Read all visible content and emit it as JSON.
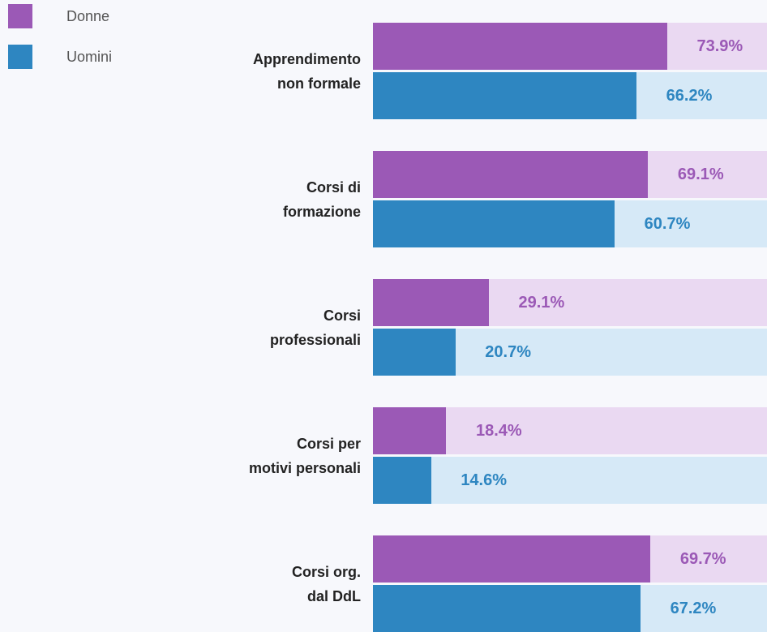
{
  "chart_data": {
    "type": "bar",
    "orientation": "horizontal",
    "categories": [
      "Apprendimento\nnon formale",
      "Corsi di\nformazione",
      "Corsi\nprofessionali",
      "Corsi per\nmotivi personali",
      "Corsi org.\ndal DdL"
    ],
    "xlim": [
      0,
      100
    ],
    "legend": "top-left",
    "series": [
      {
        "name": "Donne",
        "color": "#9b59b6",
        "track_color": "#ead9f2",
        "values": [
          73.9,
          69.1,
          29.1,
          18.4,
          69.7
        ],
        "value_labels": [
          "73.9%",
          "69.1%",
          "29.1%",
          "18.4%",
          "69.7%"
        ]
      },
      {
        "name": "Uomini",
        "color": "#2e86c1",
        "track_color": "#d6e9f7",
        "values": [
          66.2,
          60.7,
          20.7,
          14.6,
          67.2
        ],
        "value_labels": [
          "66.2%",
          "60.7%",
          "20.7%",
          "14.6%",
          "67.2%"
        ]
      }
    ]
  }
}
